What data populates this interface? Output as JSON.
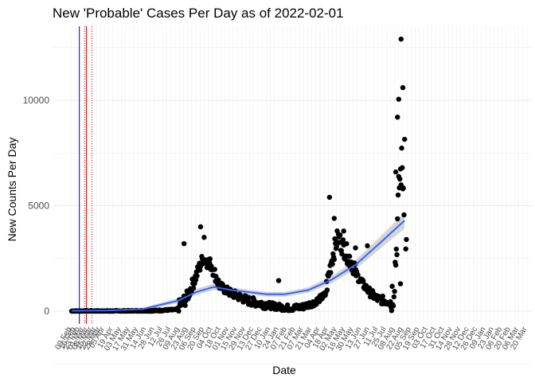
{
  "chart_data": {
    "type": "scatter",
    "title": "New 'Probable' Cases Per Day as of 2022-02-01",
    "xlabel": "Date",
    "ylabel": "New Counts Per Day",
    "ylim": [
      -500,
      13200
    ],
    "yticks": [
      0,
      5000,
      10000
    ],
    "x_range_days": [
      0,
      770
    ],
    "grid": true,
    "vlines": [
      {
        "day": 13,
        "color": "#0000cc",
        "style": "solid"
      },
      {
        "day": 25,
        "color": "#cc0000",
        "style": "solid"
      },
      {
        "day": 22,
        "color": "#cc0000",
        "style": "dotted"
      },
      {
        "day": 34,
        "color": "#cc0000",
        "style": "dotted"
      }
    ],
    "xtick_labels": [
      {
        "day": 0,
        "label": "09 Feb"
      },
      {
        "day": 7,
        "label": "16 Feb"
      },
      {
        "day": 14,
        "label": "23 Feb"
      },
      {
        "day": 21,
        "label": "01 Mar"
      },
      {
        "day": 28,
        "label": "08 Mar"
      },
      {
        "day": 35,
        "label": "15 Mar"
      },
      {
        "day": 42,
        "label": "22 Mar"
      },
      {
        "day": 49,
        "label": "29 Mar"
      },
      {
        "day": 56,
        "label": "05 Apr"
      },
      {
        "day": 70,
        "label": "19 Apr"
      },
      {
        "day": 84,
        "label": "03 May"
      },
      {
        "day": 98,
        "label": "17 May"
      },
      {
        "day": 112,
        "label": "31 May"
      },
      {
        "day": 126,
        "label": "14 Jun"
      },
      {
        "day": 140,
        "label": "28 Jun"
      },
      {
        "day": 154,
        "label": "12 Jul"
      },
      {
        "day": 168,
        "label": "26 Jul"
      },
      {
        "day": 182,
        "label": "09 Aug"
      },
      {
        "day": 196,
        "label": "23 Aug"
      },
      {
        "day": 210,
        "label": "06 Sep"
      },
      {
        "day": 224,
        "label": "20 Sep"
      },
      {
        "day": 238,
        "label": "04 Oct"
      },
      {
        "day": 252,
        "label": "18 Oct"
      },
      {
        "day": 266,
        "label": "01 Nov"
      },
      {
        "day": 280,
        "label": "15 Nov"
      },
      {
        "day": 294,
        "label": "29 Nov"
      },
      {
        "day": 308,
        "label": "13 Dec"
      },
      {
        "day": 322,
        "label": "27 Dec"
      },
      {
        "day": 336,
        "label": "10 Jan"
      },
      {
        "day": 350,
        "label": "24 Jan"
      },
      {
        "day": 364,
        "label": "07 Feb"
      },
      {
        "day": 378,
        "label": "21 Feb"
      },
      {
        "day": 392,
        "label": "07 Mar"
      },
      {
        "day": 406,
        "label": "21 Mar"
      },
      {
        "day": 420,
        "label": "04 Apr"
      },
      {
        "day": 434,
        "label": "18 Apr"
      },
      {
        "day": 448,
        "label": "02 May"
      },
      {
        "day": 462,
        "label": "16 May"
      },
      {
        "day": 476,
        "label": "30 May"
      },
      {
        "day": 490,
        "label": "13 Jun"
      },
      {
        "day": 504,
        "label": "27 Jun"
      },
      {
        "day": 518,
        "label": "11 Jul"
      },
      {
        "day": 532,
        "label": "25 Jul"
      },
      {
        "day": 546,
        "label": "08 Aug"
      },
      {
        "day": 560,
        "label": "22 Aug"
      },
      {
        "day": 574,
        "label": "05 Sep"
      },
      {
        "day": 588,
        "label": "19 Sep"
      },
      {
        "day": 602,
        "label": "03 Oct"
      },
      {
        "day": 616,
        "label": "17 Oct"
      },
      {
        "day": 630,
        "label": "31 Oct"
      },
      {
        "day": 644,
        "label": "14 Nov"
      },
      {
        "day": 658,
        "label": "28 Nov"
      },
      {
        "day": 672,
        "label": "12 Dec"
      },
      {
        "day": 686,
        "label": "26 Dec"
      },
      {
        "day": 700,
        "label": "09 Jan"
      },
      {
        "day": 714,
        "label": "23 Jan"
      },
      {
        "day": 728,
        "label": "06 Feb"
      },
      {
        "day": 742,
        "label": "20 Feb"
      },
      {
        "day": 756,
        "label": "06 Mar"
      },
      {
        "day": 770,
        "label": "20 Mar"
      }
    ],
    "segments": [
      {
        "from": 0,
        "to": 180,
        "base": [
          0,
          0,
          0,
          10,
          30,
          80
        ],
        "jitter": 60
      },
      {
        "from": 180,
        "to": 250,
        "base": [
          200,
          600,
          1500,
          2500,
          2200,
          1200
        ],
        "jitter": 600
      },
      {
        "from": 250,
        "to": 330,
        "base": [
          1200,
          900,
          700,
          500,
          400,
          300
        ],
        "jitter": 400
      },
      {
        "from": 330,
        "to": 430,
        "base": [
          300,
          200,
          150,
          200,
          400,
          800
        ],
        "jitter": 300
      },
      {
        "from": 430,
        "to": 480,
        "base": [
          1000,
          2500,
          3500,
          3000,
          2500,
          2000
        ],
        "jitter": 900
      },
      {
        "from": 480,
        "to": 540,
        "base": [
          1800,
          1300,
          900,
          600,
          500,
          450
        ],
        "jitter": 400
      },
      {
        "from": 540,
        "to": 563,
        "base": [
          500,
          1200,
          3000,
          6000,
          7000,
          5000
        ],
        "jitter": 2000
      }
    ],
    "extra_points": [
      {
        "day": 190,
        "value": 3200
      },
      {
        "day": 218,
        "value": 4000
      },
      {
        "day": 224,
        "value": 3500
      },
      {
        "day": 436,
        "value": 5400
      },
      {
        "day": 444,
        "value": 4400
      },
      {
        "day": 460,
        "value": 3800
      },
      {
        "day": 480,
        "value": 3000
      },
      {
        "day": 557,
        "value": 12900
      },
      {
        "day": 560,
        "value": 10600
      },
      {
        "day": 553,
        "value": 10050
      },
      {
        "day": 551,
        "value": 9200
      },
      {
        "day": 563,
        "value": 8150
      },
      {
        "day": 548,
        "value": 6600
      },
      {
        "day": 566,
        "value": 3400
      },
      {
        "day": 565,
        "value": 2950
      },
      {
        "day": 556,
        "value": 1300
      },
      {
        "day": 350,
        "value": 1450
      },
      {
        "day": 500,
        "value": 3100
      }
    ],
    "smooth": {
      "days": [
        0,
        60,
        120,
        180,
        210,
        240,
        270,
        300,
        330,
        360,
        400,
        440,
        480,
        520,
        563
      ],
      "values": [
        20,
        30,
        100,
        500,
        900,
        1150,
        1000,
        900,
        800,
        800,
        1000,
        1500,
        2200,
        3200,
        4300
      ],
      "band": [
        40,
        40,
        60,
        120,
        150,
        150,
        130,
        120,
        110,
        110,
        130,
        170,
        220,
        280,
        380
      ],
      "color": "#3366ff"
    }
  }
}
